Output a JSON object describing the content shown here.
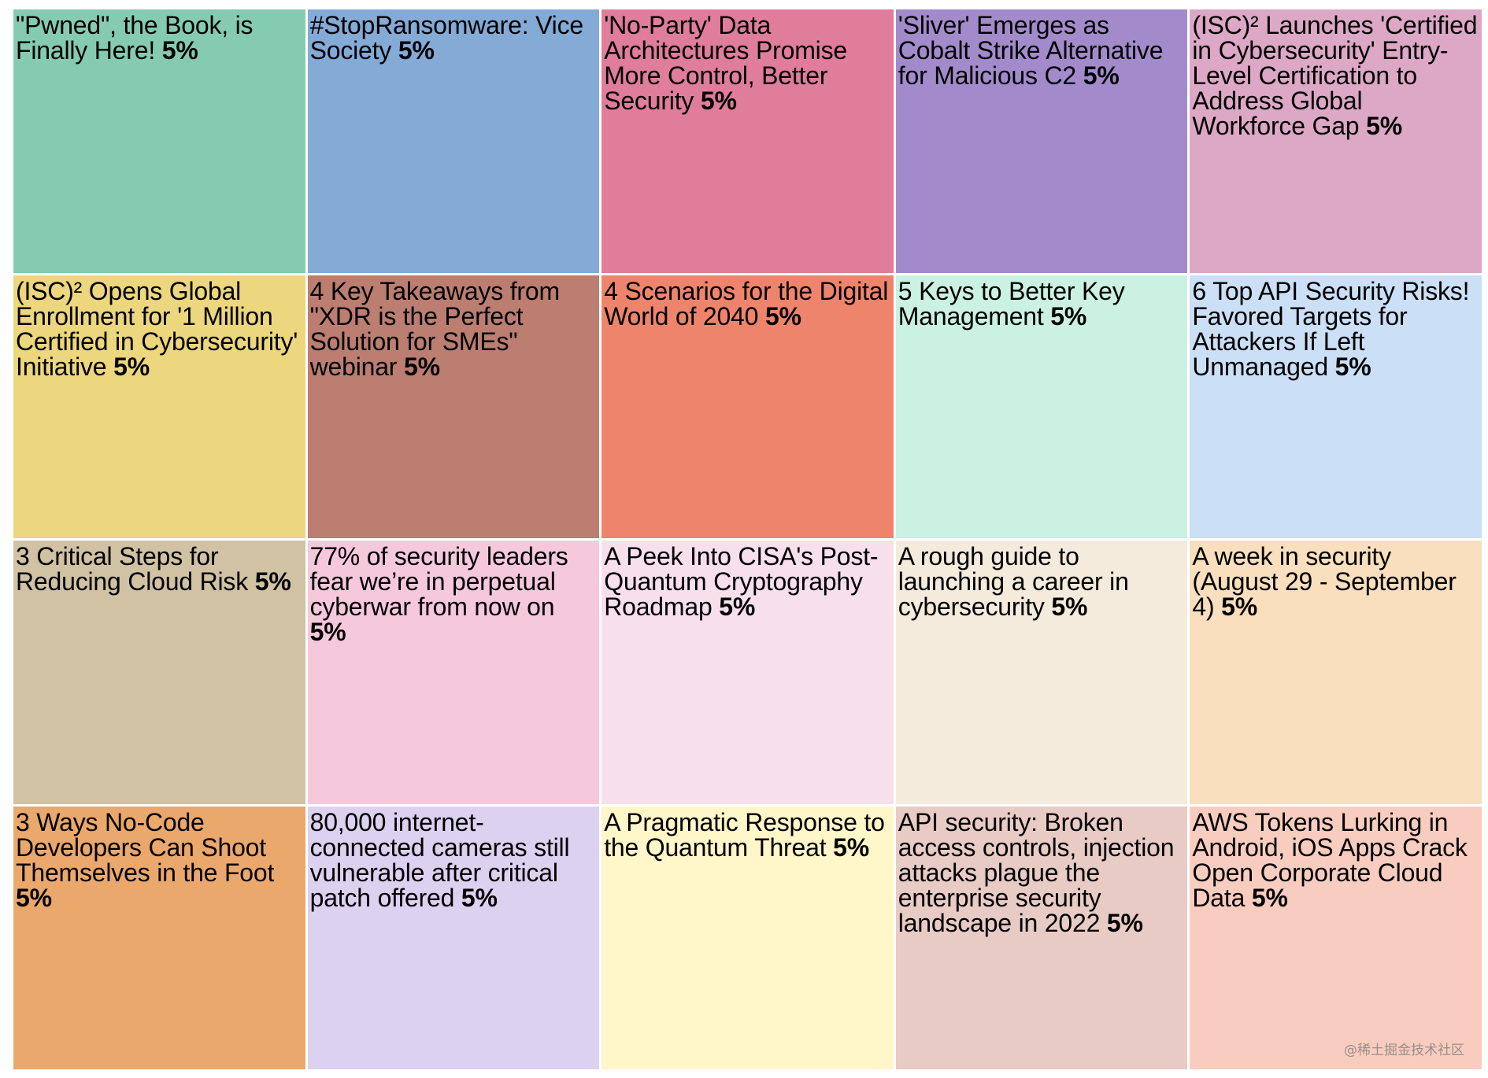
{
  "chart_data": {
    "type": "treemap",
    "items": [
      {
        "label": "\"Pwned\", the Book, is Finally Here!",
        "value": "5%",
        "color": "#85cbb2"
      },
      {
        "label": "#StopRansomware: Vice Society",
        "value": "5%",
        "color": "#84aad6"
      },
      {
        "label": "'No-Party' Data Architectures Promise More Control, Better Security",
        "value": "5%",
        "color": "#e07d9b"
      },
      {
        "label": "'Sliver' Emerges as Cobalt Strike Alternative for Malicious C2",
        "value": "5%",
        "color": "#a38bcb"
      },
      {
        "label": "(ISC)² Launches 'Certified in Cybersecurity' Entry-Level Certification to Address Global Workforce Gap",
        "value": "5%",
        "color": "#dca8c6"
      },
      {
        "label": "(ISC)² Opens Global Enrollment for '1 Million Certified in Cybersecurity' Initiative",
        "value": "5%",
        "color": "#ecd67e"
      },
      {
        "label": "4 Key Takeaways from \"XDR is the Perfect Solution for SMEs\" webinar",
        "value": "5%",
        "color": "#bb7e71"
      },
      {
        "label": "4 Scenarios for the Digital World of 2040",
        "value": "5%",
        "color": "#ef846c"
      },
      {
        "label": "5 Keys to Better Key Management",
        "value": "5%",
        "color": "#cbf1e3"
      },
      {
        "label": "6 Top API Security Risks! Favored Targets for Attackers If Left Unmanaged",
        "value": "5%",
        "color": "#cbdff6"
      },
      {
        "label": "3 Critical Steps for Reducing Cloud Risk",
        "value": "5%",
        "color": "#d0c2a3"
      },
      {
        "label": "77% of security leaders fear we’re in perpetual cyberwar from now on",
        "value": "5%",
        "color": "#f6c8db"
      },
      {
        "label": "A Peek Into CISA's Post-Quantum Cryptography Roadmap",
        "value": "5%",
        "color": "#f7dfec"
      },
      {
        "label": "A rough guide to launching a career in cybersecurity",
        "value": "5%",
        "color": "#f5ebdc"
      },
      {
        "label": "A week in security (August 29 - September 4)",
        "value": "5%",
        "color": "#f9dfbe"
      },
      {
        "label": "3 Ways No-Code Developers Can Shoot Themselves in the Foot",
        "value": "5%",
        "color": "#eba86c"
      },
      {
        "label": "80,000 internet-connected cameras still vulnerable after critical patch offered",
        "value": "5%",
        "color": "#ddd1f0"
      },
      {
        "label": "A Pragmatic Response to the Quantum Threat",
        "value": "5%",
        "color": "#fff6c9"
      },
      {
        "label": "API security: Broken access controls, injection attacks plague the enterprise security landscape in 2022",
        "value": "5%",
        "color": "#e8cbc5"
      },
      {
        "label": "AWS Tokens Lurking in Android, iOS Apps Crack Open Corporate Cloud Data",
        "value": "5%",
        "color": "#f8cdbf"
      }
    ]
  },
  "watermark": "@稀土掘金技术社区"
}
